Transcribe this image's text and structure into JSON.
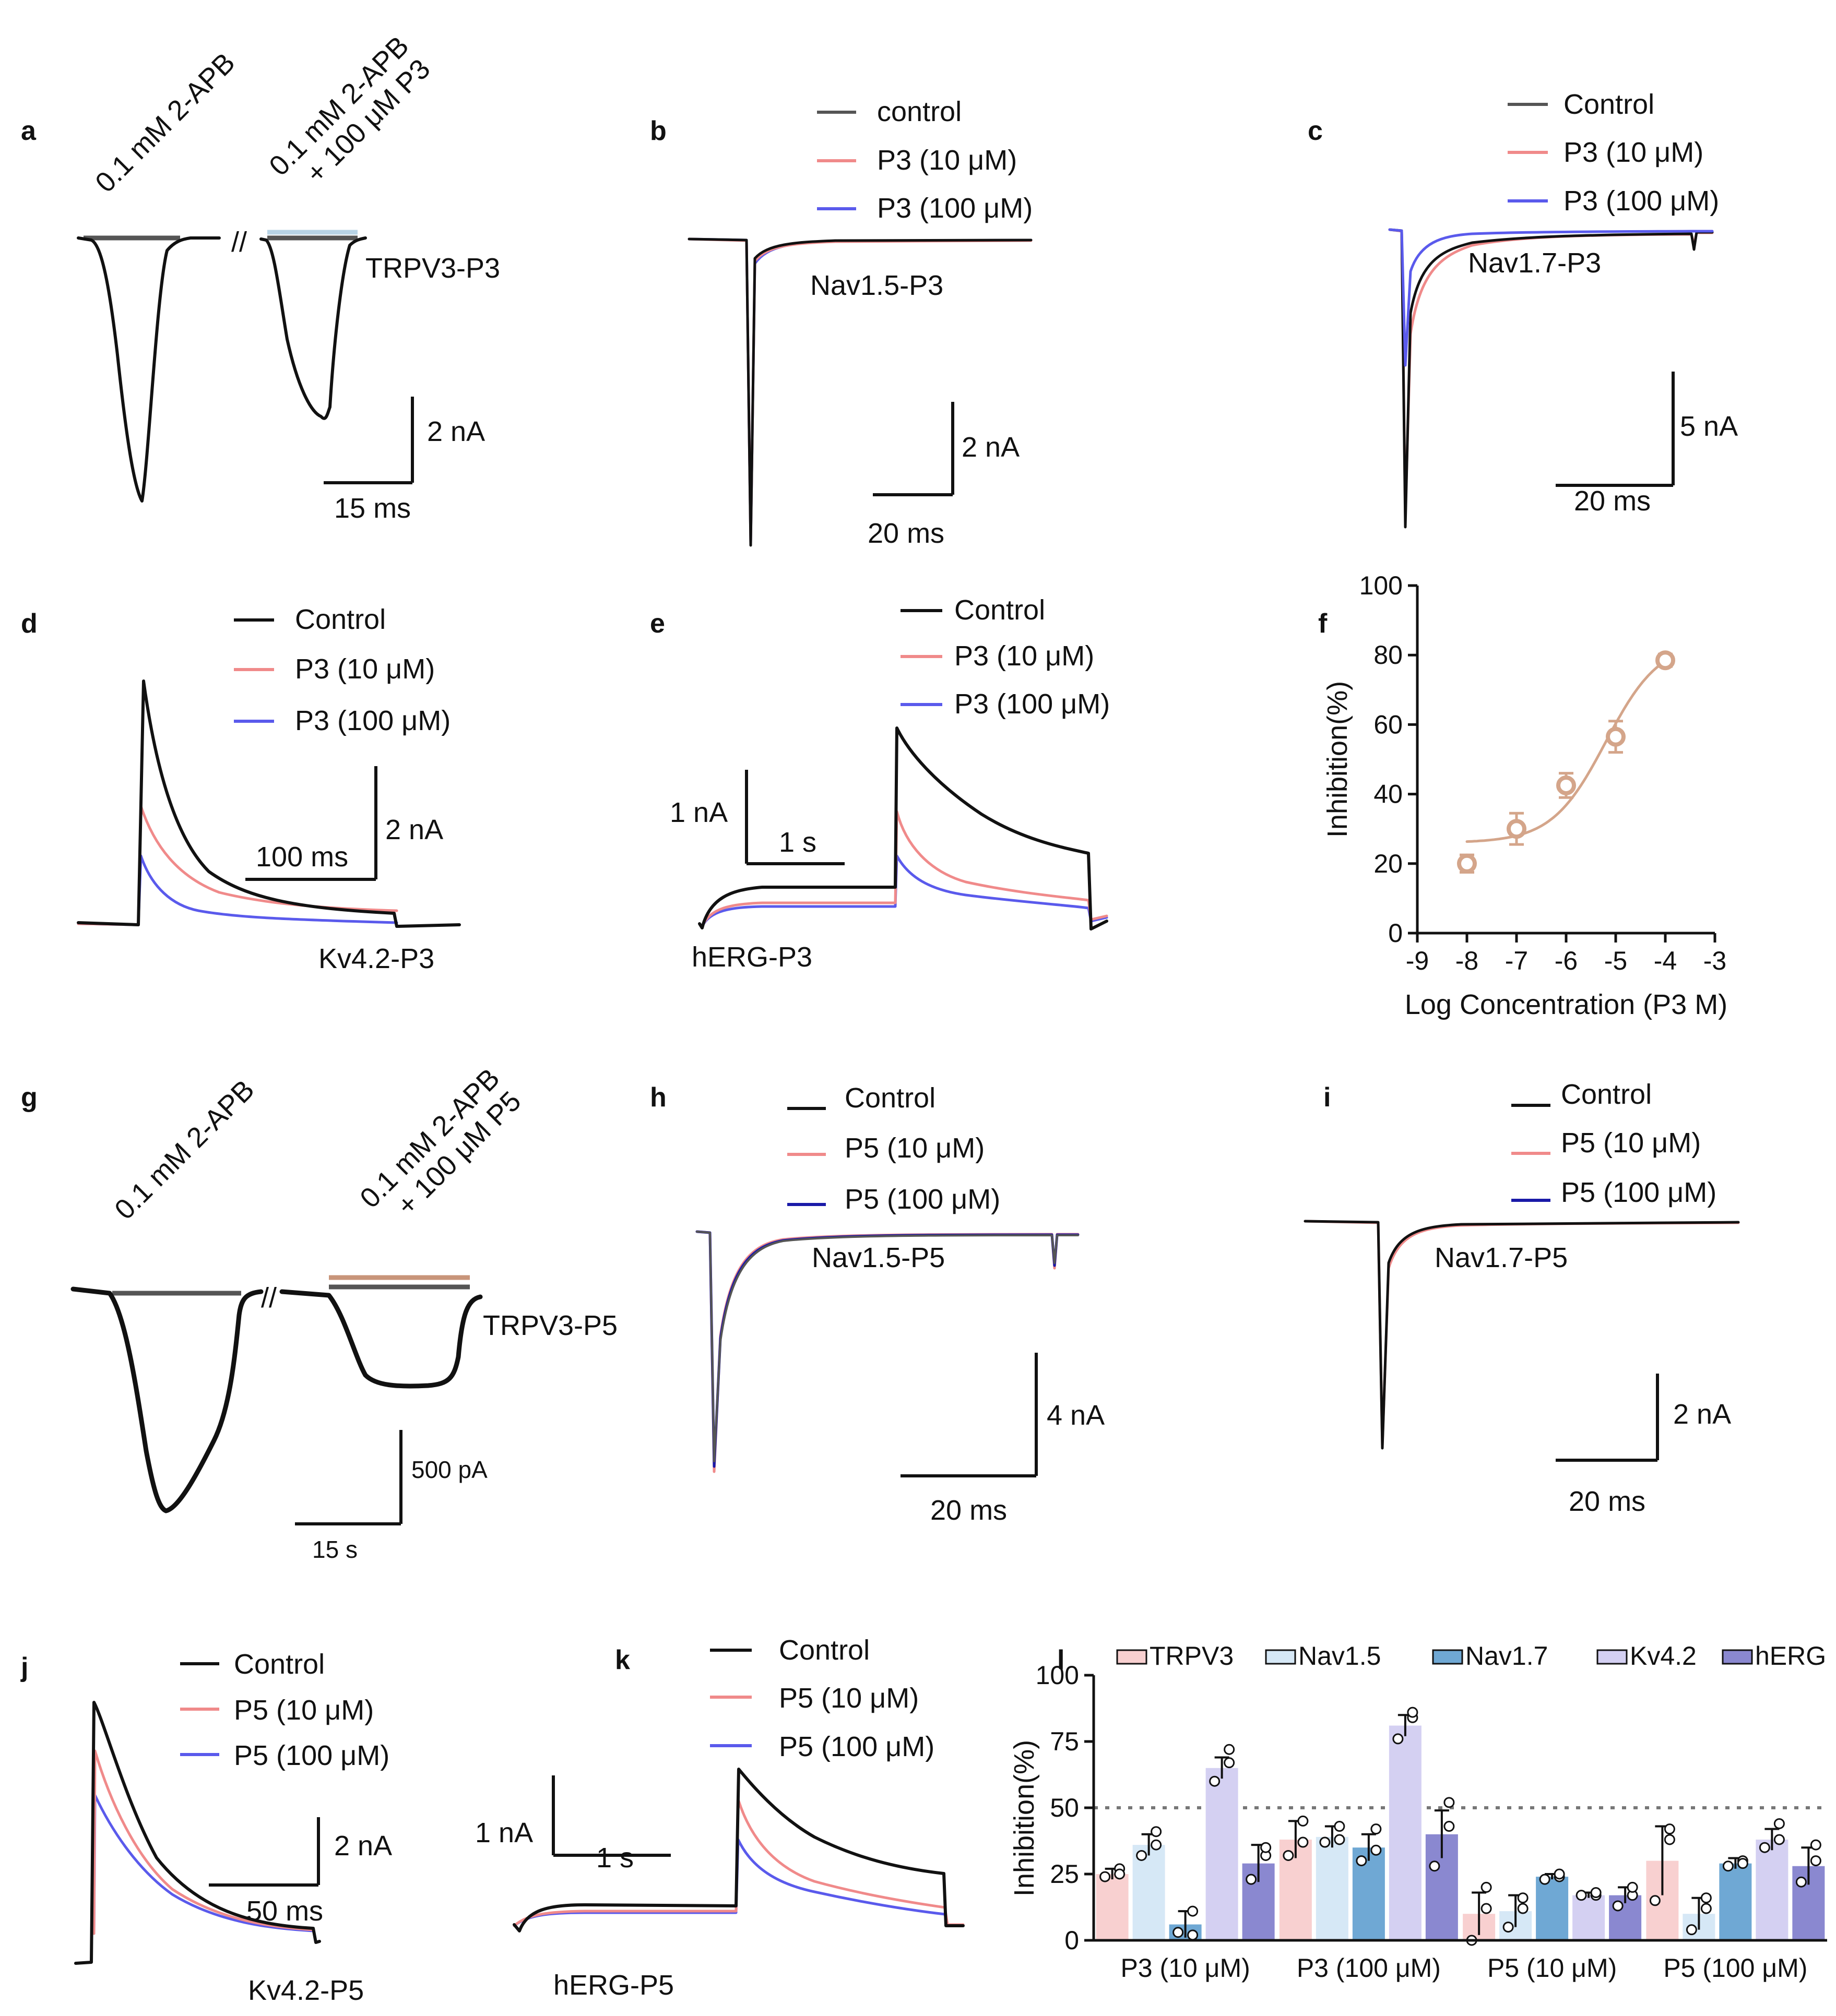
{
  "colors": {
    "control": "#111111",
    "p10": "#f08a8a",
    "p100": "#5a5aec",
    "p100dark": "#1a1aa8",
    "fit": "#d4a58a",
    "bar_trpv3": "#f8d0d0",
    "bar_nav15": "#d6e8f6",
    "bar_nav17": "#6fa8d4",
    "bar_kv42": "#d4d0f2",
    "bar_herg": "#8a88d0",
    "bar_2apb": "#555555",
    "bar_p3": "#b8d4e6",
    "bar_p5": "#c8957a"
  },
  "panels": {
    "a": {
      "letter": "a",
      "cond1": "0.1 mM 2-APB",
      "cond2_line1": "0.1 mM 2-APB",
      "cond2_line2": "+ 100 μM P3",
      "break": "//",
      "name": "TRPV3-P3",
      "scale_y": "2 nA",
      "scale_x": "15 ms"
    },
    "b": {
      "letter": "b",
      "legend": [
        "control",
        "P3 (10 μM)",
        "P3 (100 μM)"
      ],
      "name": "Nav1.5-P3",
      "scale_y": "2 nA",
      "scale_x": "20 ms"
    },
    "c": {
      "letter": "c",
      "legend": [
        "Control",
        "P3 (10 μM)",
        "P3 (100 μM)"
      ],
      "name": "Nav1.7-P3",
      "scale_y": "5 nA",
      "scale_x": "20 ms"
    },
    "d": {
      "letter": "d",
      "legend": [
        "Control",
        "P3 (10 μM)",
        "P3 (100 μM)"
      ],
      "name": "Kv4.2-P3",
      "scale_y": "2 nA",
      "scale_x": "100 ms"
    },
    "e": {
      "letter": "e",
      "legend": [
        "Control",
        "P3 (10 μM)",
        "P3 (100 μM)"
      ],
      "name": "hERG-P3",
      "scale_y": "1 nA",
      "scale_x": "1 s"
    },
    "f": {
      "letter": "f"
    },
    "g": {
      "letter": "g",
      "cond1": "0.1 mM 2-APB",
      "cond2_line1": "0.1 mM 2-APB",
      "cond2_line2": "+ 100 μM P5",
      "break": "//",
      "name": "TRPV3-P5",
      "scale_y": "500 pA",
      "scale_x": "15 s"
    },
    "h": {
      "letter": "h",
      "legend": [
        "Control",
        "P5 (10 μM)",
        "P5 (100 μM)"
      ],
      "name": "Nav1.5-P5",
      "scale_y": "4 nA",
      "scale_x": "20 ms"
    },
    "i": {
      "letter": "i",
      "legend": [
        "Control",
        "P5 (10 μM)",
        "P5 (100 μM)"
      ],
      "name": "Nav1.7-P5",
      "scale_y": "2 nA",
      "scale_x": "20 ms"
    },
    "j": {
      "letter": "j",
      "legend": [
        "Control",
        "P5 (10 μM)",
        "P5 (100 μM)"
      ],
      "name": "Kv4.2-P5",
      "scale_y": "2 nA",
      "scale_x": "50 ms"
    },
    "k": {
      "letter": "k",
      "legend": [
        "Control",
        "P5 (10 μM)",
        "P5 (100 μM)"
      ],
      "name": "hERG-P5",
      "scale_y": "1 nA",
      "scale_x": "1 s"
    },
    "l": {
      "letter": "l"
    }
  },
  "chart_data": [
    {
      "type": "scatter",
      "panel": "f",
      "xlabel": "Log Concentration (P3 M)",
      "ylabel": "Inhibition(%)",
      "xlim": [
        -9,
        -3
      ],
      "ylim": [
        0,
        100
      ],
      "xticks": [
        "-9",
        "-8",
        "-7",
        "-6",
        "-5",
        "-4",
        "-3"
      ],
      "yticks": [
        "0",
        "20",
        "40",
        "60",
        "80",
        "100"
      ],
      "x": [
        -8,
        -7,
        -6,
        -5,
        -4
      ],
      "y": [
        20,
        30,
        42.5,
        56.5,
        78.5
      ],
      "err": [
        2.5,
        4.5,
        3.5,
        4.5,
        1.8
      ],
      "fit": {
        "bottom": 26,
        "top": 84,
        "logIC50": -5.2,
        "hill": 0.8
      }
    },
    {
      "type": "bar",
      "panel": "l",
      "ylabel": "Inhibition(%)",
      "ylim": [
        0,
        100
      ],
      "yticks": [
        "0",
        "25",
        "50",
        "75",
        "100"
      ],
      "reference_line": 50,
      "categories": [
        "P3 (10 μM)",
        "P3 (100 μM)",
        "P5 (10 μM)",
        "P5 (100 μM)"
      ],
      "series": [
        {
          "name": "TRPV3",
          "values": [
            25,
            38,
            10,
            30
          ],
          "err": [
            2,
            7,
            8,
            13
          ],
          "points": [
            [
              24,
              27,
              25
            ],
            [
              32,
              45,
              37
            ],
            [
              0,
              12,
              20
            ],
            [
              15,
              38,
              42
            ]
          ]
        },
        {
          "name": "Nav1.5",
          "values": [
            36,
            39,
            11,
            10
          ],
          "err": [
            4,
            4,
            6,
            6
          ],
          "points": [
            [
              32,
              41,
              36
            ],
            [
              37,
              43,
              38
            ],
            [
              5,
              12,
              16
            ],
            [
              4,
              12,
              16
            ]
          ]
        },
        {
          "name": "Nav1.7",
          "values": [
            6,
            35,
            24,
            29
          ],
          "err": [
            5,
            5,
            1,
            2
          ],
          "points": [
            [
              3,
              2,
              11
            ],
            [
              30,
              34,
              42
            ],
            [
              23,
              24,
              25
            ],
            [
              28,
              30,
              29
            ]
          ]
        },
        {
          "name": "Kv4.2",
          "values": [
            65,
            81,
            17,
            38
          ],
          "err": [
            4,
            4,
            1,
            4
          ],
          "points": [
            [
              60,
              67,
              72
            ],
            [
              76,
              84,
              86
            ],
            [
              17,
              17,
              18
            ],
            [
              35,
              38,
              44
            ]
          ]
        },
        {
          "name": "hERG",
          "values": [
            29,
            40,
            17,
            28
          ],
          "err": [
            7,
            9,
            3,
            7
          ],
          "points": [
            [
              23,
              32,
              35
            ],
            [
              28,
              43,
              52
            ],
            [
              13,
              17,
              20
            ],
            [
              22,
              30,
              36
            ]
          ]
        }
      ]
    }
  ]
}
